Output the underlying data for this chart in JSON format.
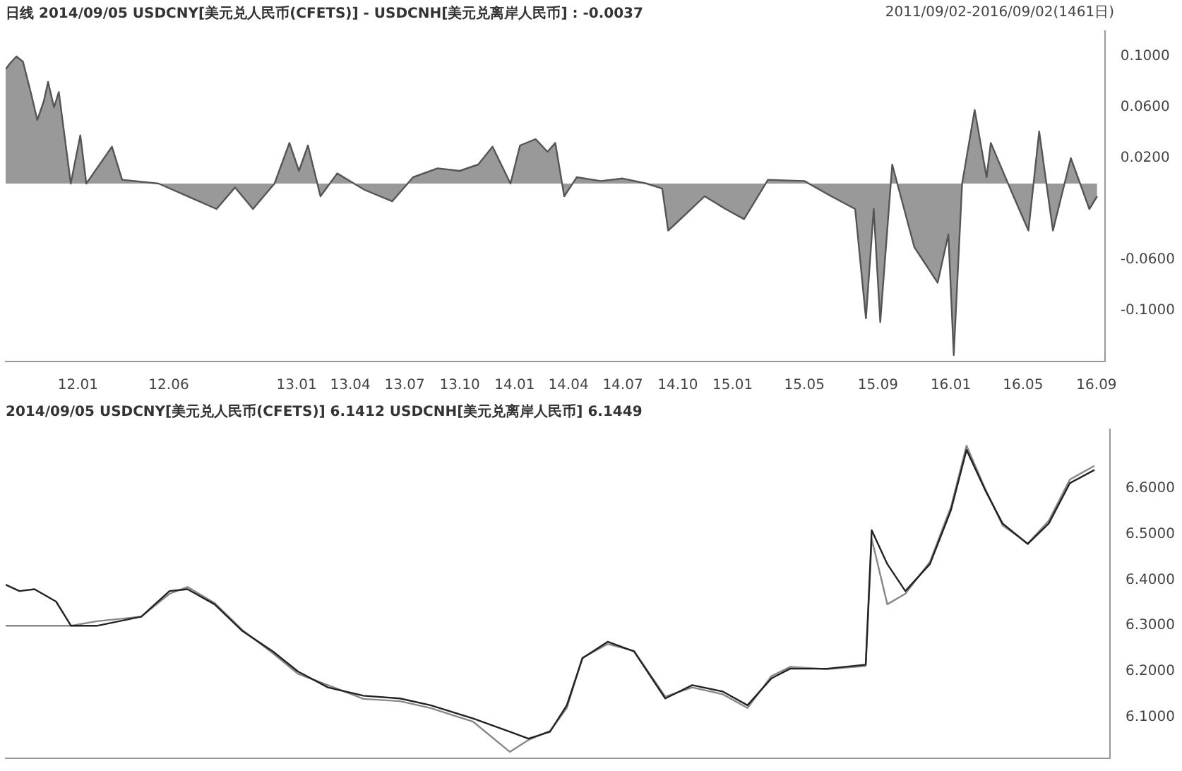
{
  "chart_data": [
    {
      "type": "area",
      "title": "日线 2014/09/05 USDCNY[美元兑人民币(CFETS)] - USDCNH[美元兑离岸人民币] : -0.0037",
      "annotations": [
        "2011/09/02-2016/09/02(1461日)"
      ],
      "x": [
        "2011-09-02",
        "2011-09-10",
        "2011-09-20",
        "2011-10-01",
        "2011-10-15",
        "2011-10-25",
        "2011-11-05",
        "2011-11-12",
        "2011-11-22",
        "2011-11-30",
        "2011-12-20",
        "2012-01-05",
        "2012-01-15",
        "2012-02-27",
        "2012-03-15",
        "2012-05-15",
        "2012-08-20",
        "2012-09-20",
        "2012-10-20",
        "2012-11-25",
        "2012-12-20",
        "2013-01-05",
        "2013-01-20",
        "2013-02-10",
        "2013-03-10",
        "2013-04-25",
        "2013-06-10",
        "2013-07-15",
        "2013-08-25",
        "2013-10-01",
        "2013-11-01",
        "2013-11-25",
        "2013-12-25",
        "2014-01-10",
        "2014-02-05",
        "2014-02-25",
        "2014-03-10",
        "2014-03-25",
        "2014-04-15",
        "2014-05-25",
        "2014-07-01",
        "2014-08-10",
        "2014-09-05",
        "2014-09-15",
        "2014-10-01",
        "2014-11-15",
        "2014-12-20",
        "2015-01-20",
        "2015-03-01",
        "2015-05-01",
        "2015-06-15",
        "2015-07-25",
        "2015-08-12",
        "2015-08-25",
        "2015-09-05",
        "2015-09-25",
        "2015-11-01",
        "2015-12-10",
        "2015-12-28",
        "2016-01-06",
        "2016-01-20",
        "2016-02-10",
        "2016-03-01",
        "2016-03-08",
        "2016-04-15",
        "2016-05-10",
        "2016-05-28",
        "2016-06-20",
        "2016-07-20",
        "2016-08-20",
        "2016-09-02"
      ],
      "series": [
        {
          "color": "#555555",
          "values": [
            0.09,
            0.095,
            0.1,
            0.096,
            0.07,
            0.05,
            0.065,
            0.08,
            0.06,
            0.072,
            0.0,
            0.038,
            0.0,
            0.029,
            0.003,
            0.0,
            -0.02,
            -0.003,
            -0.02,
            0.0,
            0.032,
            0.01,
            0.03,
            -0.01,
            0.008,
            -0.005,
            -0.014,
            0.005,
            0.012,
            0.01,
            0.015,
            0.029,
            0.0,
            0.03,
            0.035,
            0.025,
            0.032,
            -0.01,
            0.005,
            0.002,
            0.004,
            0.0,
            -0.004,
            -0.037,
            -0.03,
            -0.01,
            -0.02,
            -0.028,
            0.003,
            0.002,
            -0.01,
            -0.02,
            -0.106,
            -0.02,
            -0.109,
            0.015,
            -0.05,
            -0.078,
            -0.04,
            -0.135,
            0.0,
            0.058,
            0.005,
            0.032,
            -0.01,
            -0.037,
            0.041,
            -0.037,
            0.02,
            -0.02,
            -0.01
          ]
        }
      ],
      "ylim": [
        -0.14,
        0.12
      ],
      "yticks": [
        {
          "value": 0.1,
          "label": "0.1000"
        },
        {
          "value": 0.06,
          "label": "0.0600"
        },
        {
          "value": 0.02,
          "label": "0.0200"
        },
        {
          "value": -0.06,
          "label": "-0.0600"
        },
        {
          "value": -0.1,
          "label": "-0.1000"
        }
      ],
      "xlim": [
        "2011-09-02",
        "2016-09-15"
      ],
      "xticks": [
        {
          "value": "2012-01",
          "label": "12.01"
        },
        {
          "value": "2012-06",
          "label": "12.06"
        },
        {
          "value": "2013-01",
          "label": "13.01"
        },
        {
          "value": "2013-04",
          "label": "13.04"
        },
        {
          "value": "2013-07",
          "label": "13.07"
        },
        {
          "value": "2013-10",
          "label": "13.10"
        },
        {
          "value": "2014-01",
          "label": "14.01"
        },
        {
          "value": "2014-04",
          "label": "14.04"
        },
        {
          "value": "2014-07",
          "label": "14.07"
        },
        {
          "value": "2014-10",
          "label": "14.10"
        },
        {
          "value": "2015-01",
          "label": "15.01"
        },
        {
          "value": "2015-05",
          "label": "15.05"
        },
        {
          "value": "2015-09",
          "label": "15.09"
        },
        {
          "value": "2016-01",
          "label": "16.01"
        },
        {
          "value": "2016-05",
          "label": "16.05"
        },
        {
          "value": "2016-09",
          "label": "16.09"
        }
      ],
      "grid": false,
      "legend": false
    },
    {
      "type": "line",
      "title": "2014/09/05 USDCNY[美元兑人民币(CFETS)] 6.1412 USDCNH[美元兑离岸人民币] 6.1449",
      "x": [
        "2011-09-02",
        "2011-09-25",
        "2011-10-20",
        "2011-11-25",
        "2011-12-20",
        "2012-02-01",
        "2012-04-15",
        "2012-06-01",
        "2012-07-01",
        "2012-08-15",
        "2012-10-01",
        "2012-11-20",
        "2013-01-01",
        "2013-02-20",
        "2013-04-20",
        "2013-06-20",
        "2013-08-10",
        "2013-10-20",
        "2013-12-20",
        "2014-01-20",
        "2014-02-25",
        "2014-03-25",
        "2014-04-20",
        "2014-06-01",
        "2014-07-15",
        "2014-09-05",
        "2014-10-20",
        "2014-12-10",
        "2015-01-20",
        "2015-03-01",
        "2015-04-01",
        "2015-06-01",
        "2015-08-05",
        "2015-08-15",
        "2015-09-10",
        "2015-10-10",
        "2015-11-20",
        "2015-12-25",
        "2016-01-20",
        "2016-02-20",
        "2016-03-20",
        "2016-05-01",
        "2016-06-05",
        "2016-07-10",
        "2016-08-20"
      ],
      "tick_labels": "y",
      "series": [
        {
          "color": "#222222",
          "values": [
            6.39,
            6.376,
            6.38,
            6.353,
            6.3,
            6.3,
            6.32,
            6.376,
            6.38,
            6.347,
            6.288,
            6.244,
            6.2,
            6.165,
            6.147,
            6.141,
            6.126,
            6.097,
            6.068,
            6.053,
            6.068,
            6.126,
            6.229,
            6.265,
            6.244,
            6.141,
            6.17,
            6.156,
            6.126,
            6.185,
            6.206,
            6.206,
            6.215,
            6.509,
            6.435,
            6.376,
            6.435,
            6.553,
            6.685,
            6.597,
            6.524,
            6.479,
            6.524,
            6.612,
            6.641
          ]
        },
        {
          "color": "#888888",
          "values": [
            6.3,
            6.3,
            6.3,
            6.3,
            6.3,
            6.31,
            6.32,
            6.37,
            6.385,
            6.35,
            6.29,
            6.24,
            6.195,
            6.17,
            6.14,
            6.135,
            6.12,
            6.09,
            6.024,
            6.05,
            6.07,
            6.12,
            6.23,
            6.26,
            6.245,
            6.145,
            6.165,
            6.15,
            6.12,
            6.19,
            6.21,
            6.205,
            6.212,
            6.49,
            6.347,
            6.37,
            6.44,
            6.56,
            6.694,
            6.6,
            6.52,
            6.48,
            6.53,
            6.62,
            6.65
          ]
        }
      ],
      "ylim": [
        6.01,
        6.73
      ],
      "yticks": [
        {
          "value": 6.6,
          "label": "6.6000"
        },
        {
          "value": 6.5,
          "label": "6.5000"
        },
        {
          "value": 6.4,
          "label": "6.4000"
        },
        {
          "value": 6.3,
          "label": "6.3000"
        },
        {
          "value": 6.2,
          "label": "6.2000"
        },
        {
          "value": 6.1,
          "label": "6.1000"
        }
      ],
      "xlim": [
        "2011-09-02",
        "2016-09-15"
      ],
      "grid": false,
      "legend": false
    }
  ]
}
